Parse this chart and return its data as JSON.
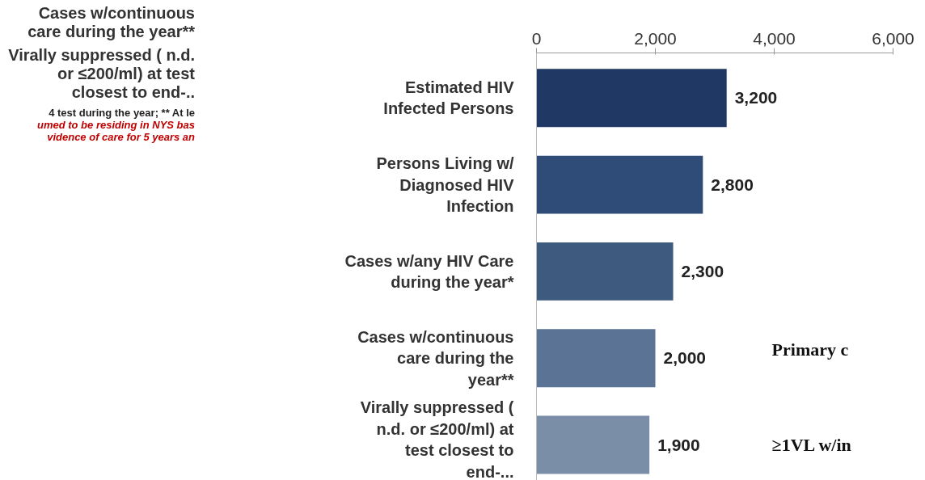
{
  "chart_data": {
    "type": "bar",
    "orientation": "horizontal",
    "categories": [
      "Estimated HIV Infected Persons",
      "Persons Living w/ Diagnosed HIV Infection",
      "Cases w/any HIV Care during the year*",
      "Cases w/continuous care during the year**",
      "Virally suppressed ( n.d. or ≤200/ml) at test closest to end-..."
    ],
    "values": [
      3200,
      2800,
      2300,
      2000,
      1900
    ],
    "colors": [
      "#1f3864",
      "#2f4b78",
      "#3f5a7f",
      "#5b7394",
      "#7b8ea8"
    ],
    "xlim": [
      0,
      6000
    ],
    "xticks": [
      {
        "value": 0,
        "label": "0"
      },
      {
        "value": 2000,
        "label": "2,000"
      },
      {
        "value": 4000,
        "label": "4,000"
      },
      {
        "value": 6000,
        "label": "6,000"
      }
    ],
    "value_labels": [
      "3,200",
      "2,800",
      "2,300",
      "2,000",
      "1,900"
    ],
    "grid": false,
    "annotations": [
      "Cases w/continuous care during the year**",
      "Virally suppressed ( n.d. or ≤200/ml) at test closest to end-..",
      "4 test during the year; ** At le",
      "umed to be residing in NYS bas",
      "vidence of care for 5 years  an",
      "Primary c",
      "≥1VL w/in"
    ]
  }
}
